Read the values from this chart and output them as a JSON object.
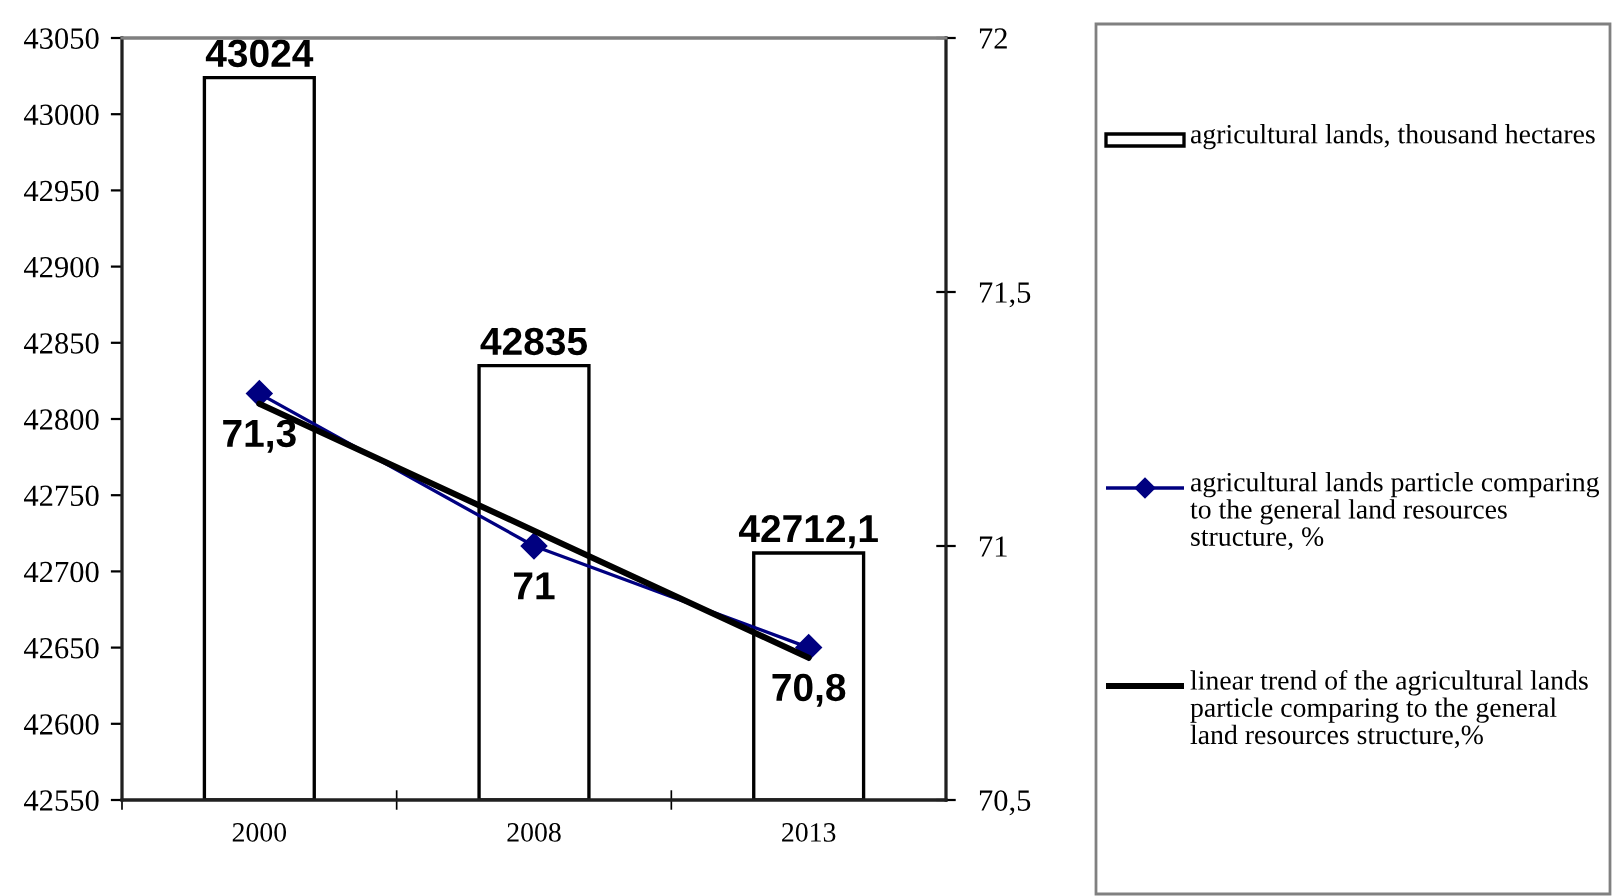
{
  "chart_data": {
    "type": "bar",
    "categories": [
      "2000",
      "2008",
      "2013"
    ],
    "series": [
      {
        "name": "agricultural lands, thousand hectares",
        "color": "#ffffff",
        "values": [
          43024,
          42835,
          42712.1
        ],
        "value_labels": [
          "43024",
          "42835",
          "42712,1"
        ]
      },
      {
        "name": "agricultural lands particle comparing to the general land resources structure, %",
        "type": "line",
        "axis": "y2",
        "color": "#000080",
        "marker": "diamond",
        "values": [
          71.3,
          71,
          70.8
        ],
        "value_labels": [
          "71,3",
          "71",
          "70,8"
        ]
      },
      {
        "name": "linear trend of the agricultural lands particle comparing to the general land resources structure,%",
        "type": "line",
        "axis": "y2",
        "color": "#000000",
        "values": [
          71.28,
          71.03,
          70.78
        ]
      }
    ],
    "ylim": [
      42550,
      43050
    ],
    "yticks": [
      42550,
      42600,
      42650,
      42700,
      42750,
      42800,
      42850,
      42900,
      42950,
      43000,
      43050
    ],
    "y2lim": [
      70.5,
      72
    ],
    "y2ticks": [
      {
        "value": 70.5,
        "label": "70,5"
      },
      71,
      {
        "value": 71.5,
        "label": "71,5"
      },
      72
    ],
    "legend": "right"
  }
}
